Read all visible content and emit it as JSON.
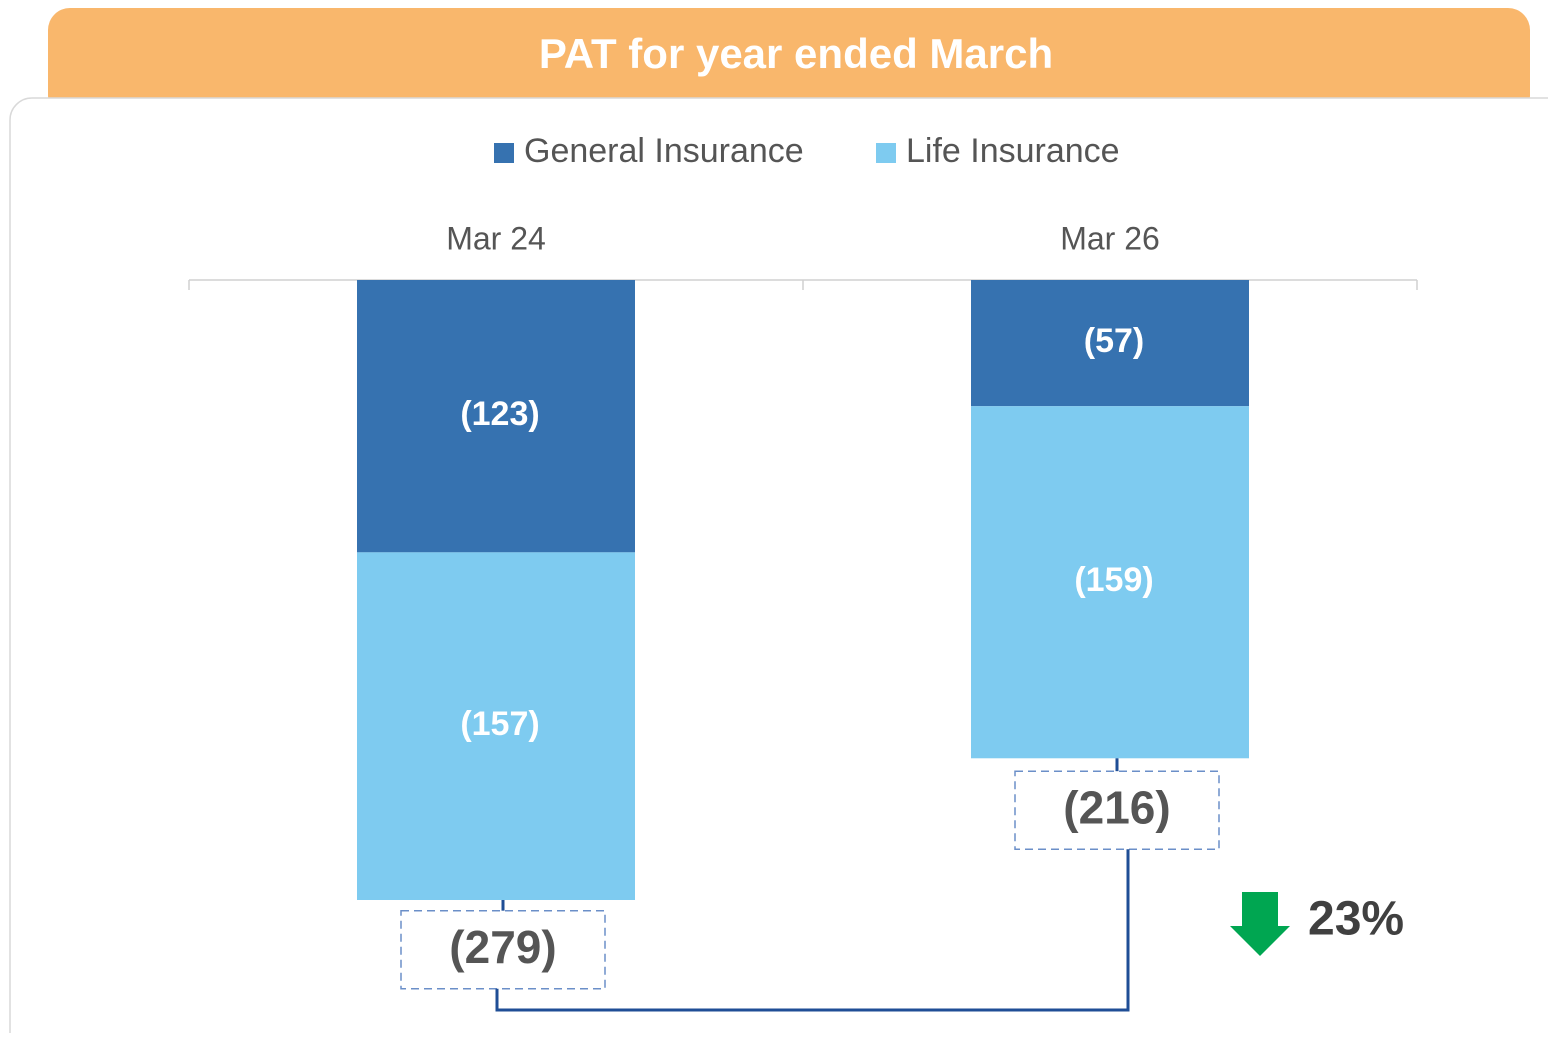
{
  "chart_data": {
    "type": "bar",
    "stacked": true,
    "title": "PAT for year ended March",
    "categories": [
      "Mar 24",
      "Mar 26"
    ],
    "series": [
      {
        "name": "General Insurance",
        "color": "#3672b0",
        "values": [
          -123,
          -57
        ],
        "value_labels": [
          "(123)",
          "(57)"
        ]
      },
      {
        "name": "Life Insurance",
        "color": "#7ecbf0",
        "values": [
          -157,
          -159
        ],
        "value_labels": [
          "(157)",
          "(159)"
        ]
      }
    ],
    "totals": {
      "values": [
        -279,
        -216
      ],
      "value_labels": [
        "(279)",
        "(216)"
      ]
    },
    "change": {
      "value": -23,
      "label": "23%"
    },
    "ylim": [
      -320,
      0
    ],
    "legend": "top"
  }
}
